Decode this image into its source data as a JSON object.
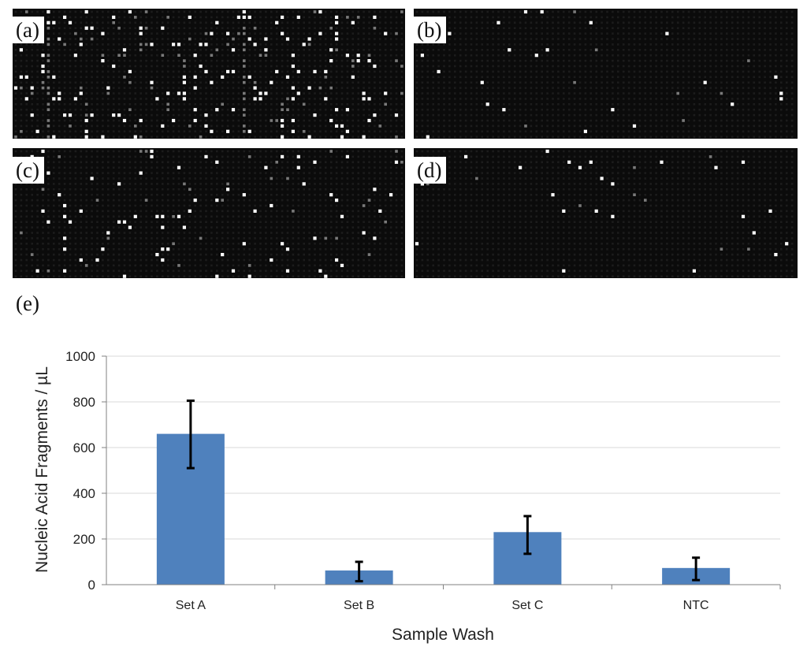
{
  "panels": [
    {
      "id": "a",
      "label": "(a)"
    },
    {
      "id": "b",
      "label": "(b)"
    },
    {
      "id": "c",
      "label": "(c)"
    },
    {
      "id": "d",
      "label": "(d)"
    }
  ],
  "chart_label": "(e)",
  "colors": {
    "bar": "#4f81bd",
    "error_bar": "#000000",
    "grid": "#d9d9d9",
    "axis": "#808080",
    "panel_background": "#0b0b0b",
    "spot_dim": "#1c1c1c",
    "spot_bright": "#ffffff"
  },
  "chart_data": {
    "type": "bar",
    "title": "",
    "xlabel": "Sample Wash",
    "ylabel": "Nucleic Acid Fragments / µL",
    "categories": [
      "Set A",
      "Set B",
      "Set C",
      "NTC"
    ],
    "values": [
      660,
      62,
      230,
      73
    ],
    "error": [
      [
        510,
        805
      ],
      [
        15,
        100
      ],
      [
        135,
        300
      ],
      [
        20,
        118
      ]
    ],
    "ylim": [
      0,
      1000
    ],
    "yticks": [
      0,
      200,
      400,
      600,
      800,
      1000
    ],
    "grid": true,
    "legend": "none"
  }
}
